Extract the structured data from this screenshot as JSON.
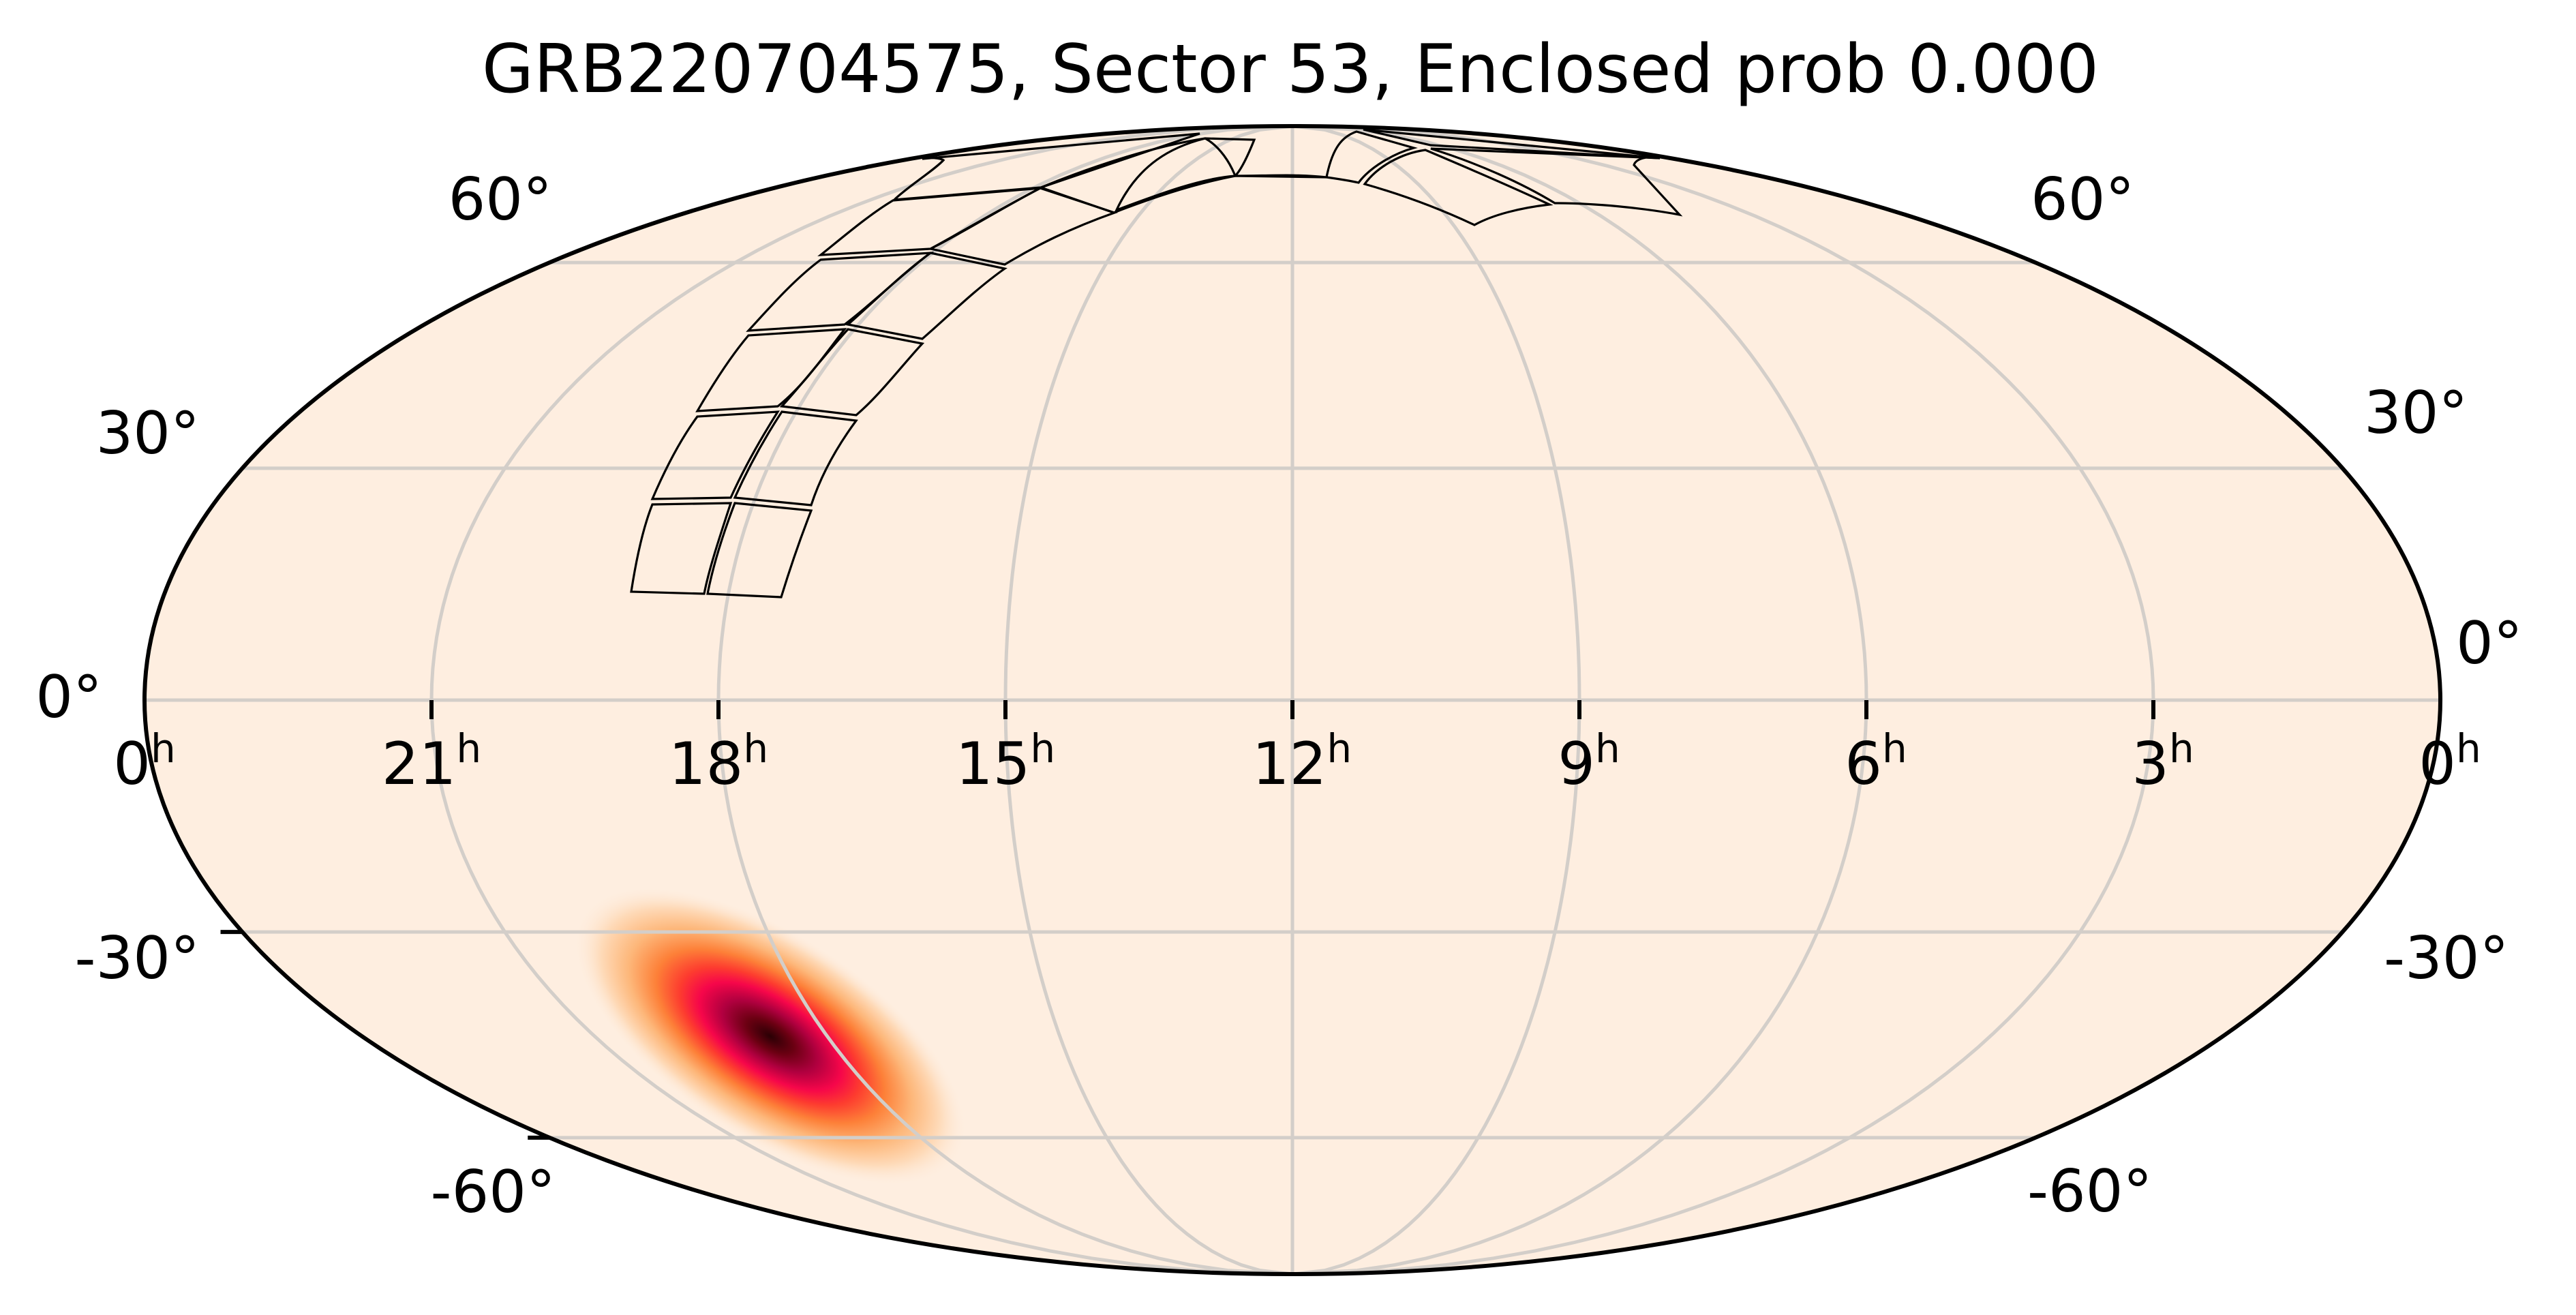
{
  "chart_data": {
    "type": "heatmap",
    "projection": "mollweide",
    "title": "GRB220704575, Sector 53, Enclosed prob 0.000",
    "xlabel": "",
    "ylabel": "",
    "grid": true,
    "colormap": "hot-reversed-like (cream → orange → red → crimson → black)",
    "background_color": "#feeee0",
    "x_ticks": [
      "0h",
      "21h",
      "18h",
      "15h",
      "12h",
      "9h",
      "6h",
      "3h",
      "0h"
    ],
    "x_tick_hours": [
      24,
      21,
      18,
      15,
      12,
      9,
      6,
      3,
      0
    ],
    "y_ticks": [
      "60°",
      "30°",
      "0°",
      "-30°",
      "-60°"
    ],
    "y_tick_degrees": [
      60,
      30,
      0,
      -30,
      -60
    ],
    "probability_peak": {
      "ra_hours": 17.2,
      "dec_deg": -42,
      "description": "elongated localization blob, southern sky"
    },
    "tess_footprint": "Sector 53 camera/CCD tiles in northern sky, RA ~11h–19h, Dec ~+15° to +85°",
    "enclosed_probability": 0.0
  },
  "figure": {
    "title": "GRB220704575, Sector 53, Enclosed prob 0.000",
    "ra_labels": [
      {
        "main": "0",
        "sup": "h"
      },
      {
        "main": "21",
        "sup": "h"
      },
      {
        "main": "18",
        "sup": "h"
      },
      {
        "main": "15",
        "sup": "h"
      },
      {
        "main": "12",
        "sup": "h"
      },
      {
        "main": "9",
        "sup": "h"
      },
      {
        "main": "6",
        "sup": "h"
      },
      {
        "main": "3",
        "sup": "h"
      },
      {
        "main": "0",
        "sup": "h"
      }
    ],
    "dec_labels_left": [
      "60°",
      "30°",
      "0°",
      "-30°",
      "-60°"
    ],
    "dec_labels_right": [
      "60°",
      "30°",
      "0°",
      "-30°",
      "-60°"
    ],
    "colors": {
      "background": "#feeee0",
      "grid": "#d3cec9",
      "frame": "#000000",
      "heat_outer": "#fdc48e",
      "heat_orange": "#fd7a35",
      "heat_red": "#fc1d43",
      "heat_crimson": "#c8004a",
      "heat_core": "#3a0005"
    }
  }
}
